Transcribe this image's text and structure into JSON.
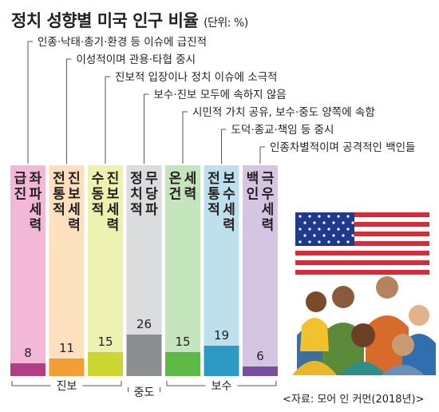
{
  "chart_data": {
    "type": "bar",
    "title": "정치 성향별 미국 인구 비율",
    "unit": "(단위: %)",
    "categories": [
      {
        "label": "급진 좌파세력",
        "value": 8,
        "description": "인종·낙태·총기·환경 등 이슈에 급진적",
        "light": "#f3b8d8",
        "dark": "#b23f86"
      },
      {
        "label": "전통적 진보세력",
        "value": 11,
        "description": "이성적이며 관용·타협 중시",
        "light": "#fde0bd",
        "dark": "#f49e37"
      },
      {
        "label": "수동적 진보세력",
        "value": 15,
        "description": "진보적 입장이나 정치 이슈에 소극적",
        "light": "#eef2b0",
        "dark": "#cdd531"
      },
      {
        "label": "정치적 무당파",
        "value": 26,
        "description": "보수·진보 모두에 속하지 않음",
        "light": "#dbdcdd",
        "dark": "#8c8f92"
      },
      {
        "label": "온건 세력",
        "value": 15,
        "description": "시민적 가치 공유, 보수·중도 양쪽에 속함",
        "light": "#c5e5bd",
        "dark": "#5dba47"
      },
      {
        "label": "전통적 보수세력",
        "value": 19,
        "description": "도덕·종교·책임 등 중시",
        "light": "#bde0ec",
        "dark": "#2c9ac2"
      },
      {
        "label": "백인 극우세력",
        "value": 6,
        "description": "인종차별적이며 공격적인 백인들",
        "light": "#d5c5e3",
        "dark": "#7a4d9e"
      }
    ],
    "groups": [
      {
        "label": "진보",
        "from": 0,
        "to": 2
      },
      {
        "label": "중도",
        "from": 3,
        "to": 3
      },
      {
        "label": "보수",
        "from": 4,
        "to": 6
      }
    ],
    "source": "<자료: 모어 인 커먼(2018년)>"
  }
}
